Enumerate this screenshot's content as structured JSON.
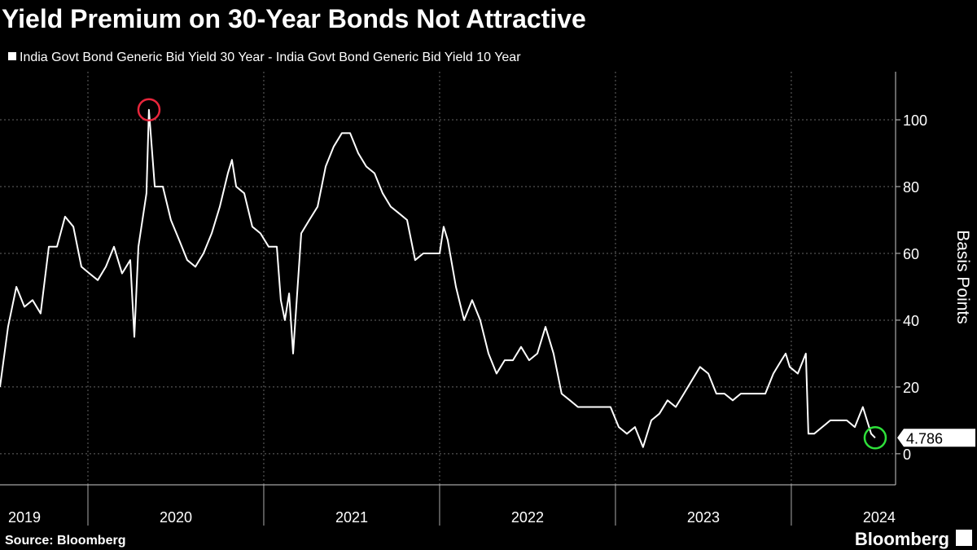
{
  "chart_data": {
    "type": "line",
    "title": "Yield Premium on 30-Year Bonds Not Attractive",
    "legend_label": "India Govt Bond Generic Bid Yield 30 Year - India Govt Bond Generic Bid Yield 10 Year",
    "y_axis_label": "Basis Points",
    "source": "Source: Bloomberg",
    "brand": "Bloomberg",
    "x": [
      2019.5,
      2019.546,
      2019.593,
      2019.639,
      2019.685,
      2019.731,
      2019.778,
      2019.824,
      2019.87,
      2019.917,
      2019.963,
      2020.009,
      2020.056,
      2020.102,
      2020.148,
      2020.194,
      2020.241,
      2020.264,
      2020.287,
      2020.333,
      2020.347,
      2020.38,
      2020.426,
      2020.472,
      2020.519,
      2020.565,
      2020.611,
      2020.657,
      2020.704,
      2020.75,
      2020.796,
      2020.819,
      2020.843,
      2020.889,
      2020.935,
      2020.981,
      2021.028,
      2021.074,
      2021.097,
      2021.12,
      2021.144,
      2021.167,
      2021.213,
      2021.259,
      2021.306,
      2021.352,
      2021.398,
      2021.444,
      2021.491,
      2021.537,
      2021.583,
      2021.63,
      2021.676,
      2021.722,
      2021.769,
      2021.815,
      2021.861,
      2021.907,
      2021.954,
      2022.0,
      2022.023,
      2022.046,
      2022.093,
      2022.139,
      2022.185,
      2022.231,
      2022.278,
      2022.324,
      2022.37,
      2022.417,
      2022.463,
      2022.509,
      2022.556,
      2022.602,
      2022.648,
      2022.694,
      2022.741,
      2022.787,
      2022.833,
      2022.88,
      2022.926,
      2022.972,
      2023.019,
      2023.065,
      2023.111,
      2023.157,
      2023.204,
      2023.25,
      2023.296,
      2023.343,
      2023.389,
      2023.435,
      2023.481,
      2023.528,
      2023.574,
      2023.62,
      2023.667,
      2023.713,
      2023.759,
      2023.806,
      2023.852,
      2023.898,
      2023.944,
      2023.968,
      2023.991,
      2024.037,
      2024.083,
      2024.097,
      2024.13,
      2024.176,
      2024.222,
      2024.269,
      2024.315,
      2024.361,
      2024.407,
      2024.454,
      2024.477
    ],
    "series": [
      {
        "name": "India Govt Bond Generic Bid Yield 30 Year - India Govt Bond Generic Bid Yield 10 Year",
        "color": "#ffffff",
        "values": [
          20,
          38,
          50,
          44,
          46,
          42,
          62,
          62,
          71,
          68,
          56,
          54,
          52,
          56,
          62,
          54,
          58,
          35,
          62,
          78,
          103,
          80,
          80,
          70,
          64,
          58,
          56,
          60,
          66,
          74,
          84,
          88,
          80,
          78,
          68,
          66,
          62,
          62,
          46,
          40,
          48,
          30,
          66,
          70,
          74,
          86,
          92,
          96,
          96,
          90,
          86,
          84,
          78,
          74,
          72,
          70,
          58,
          60,
          60,
          60,
          68,
          64,
          50,
          40,
          46,
          40,
          30,
          24,
          28,
          28,
          32,
          28,
          30,
          38,
          30,
          18,
          16,
          14,
          14,
          14,
          14,
          14,
          8,
          6,
          8,
          2,
          10,
          12,
          16,
          14,
          18,
          22,
          26,
          24,
          18,
          18,
          16,
          18,
          18,
          18,
          18,
          24,
          28,
          30,
          26,
          24,
          30,
          6,
          6,
          8,
          10,
          10,
          10,
          8,
          14,
          6,
          4.786
        ]
      }
    ],
    "highlights": [
      {
        "index": 20,
        "color": "#e8263c"
      },
      {
        "index": 116,
        "color": "#2ee03a"
      }
    ],
    "xlim": [
      2019.5,
      2024.593
    ],
    "xticks": [
      2020,
      2021,
      2022,
      2023,
      2024
    ],
    "xtick_labels": [
      {
        "value": 2019.5,
        "label": "2019"
      },
      {
        "value": 2020.5,
        "label": "2020"
      },
      {
        "value": 2021.5,
        "label": "2021"
      },
      {
        "value": 2022.5,
        "label": "2022"
      },
      {
        "value": 2023.5,
        "label": "2023"
      },
      {
        "value": 2024.5,
        "label": "2024"
      }
    ],
    "ylim": [
      -9.3,
      114.4
    ],
    "yticks": [
      0,
      20,
      40,
      60,
      80,
      100
    ],
    "grid": true
  }
}
